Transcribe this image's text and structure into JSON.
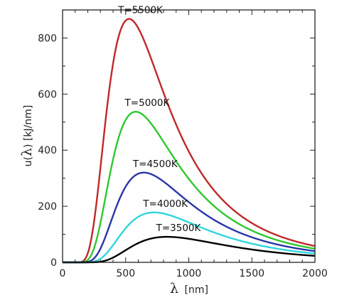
{
  "chart_data": {
    "type": "line",
    "xlabel_symbol": "λ",
    "xlabel_unit": "[nm]",
    "ylabel_func": "u(",
    "ylabel_symbol": "λ",
    "ylabel_rest": ") [kJ/nm]",
    "xlim": [
      0,
      2000
    ],
    "ylim": [
      0,
      900
    ],
    "x_ticks": [
      0,
      500,
      1000,
      1500,
      2000
    ],
    "y_ticks": [
      0,
      200,
      400,
      600,
      800
    ],
    "grid": false,
    "series": [
      {
        "name": "T=5500K",
        "T": 5500,
        "color": "#c0282a",
        "peak_x": 527,
        "peak_y": 868
      },
      {
        "name": "T=5000K",
        "T": 5000,
        "color": "#2ec82e",
        "peak_x": 580,
        "peak_y": 537
      },
      {
        "name": "T=4500K",
        "T": 4500,
        "color": "#2a35a8",
        "peak_x": 644,
        "peak_y": 320
      },
      {
        "name": "T=4000K",
        "T": 4000,
        "color": "#2fd6dc",
        "peak_x": 725,
        "peak_y": 178
      },
      {
        "name": "T=3500K",
        "T": 3500,
        "color": "#000000",
        "peak_x": 828,
        "peak_y": 91
      }
    ]
  }
}
